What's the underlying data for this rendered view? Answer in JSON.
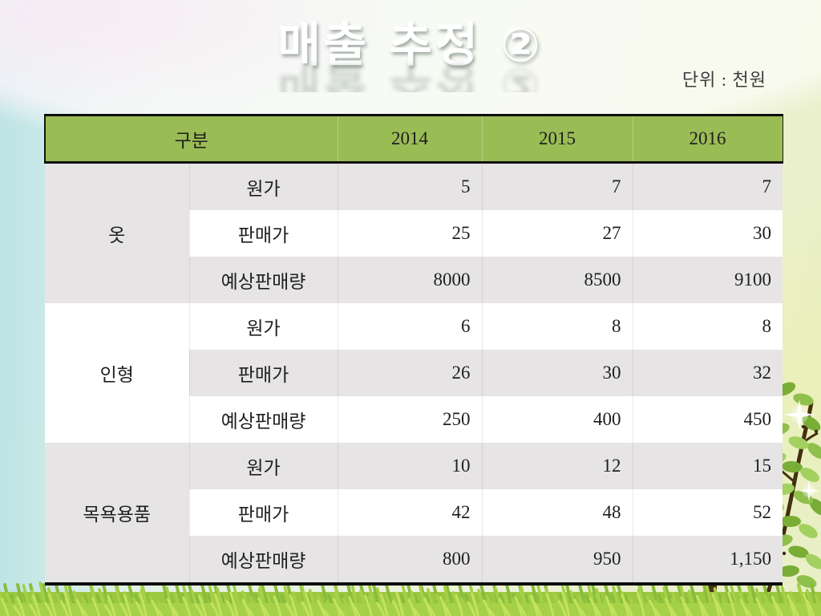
{
  "slide": {
    "title": "매출 추정 ②",
    "unit_label": "단위 : 천원"
  },
  "table": {
    "header": {
      "category": "구분",
      "years": [
        "2014",
        "2015",
        "2016"
      ]
    },
    "groups": [
      {
        "name": "옷",
        "rows": [
          {
            "metric": "원가",
            "values": [
              "5",
              "7",
              "7"
            ]
          },
          {
            "metric": "판매가",
            "values": [
              "25",
              "27",
              "30"
            ]
          },
          {
            "metric": "예상판매량",
            "values": [
              "8000",
              "8500",
              "9100"
            ]
          }
        ]
      },
      {
        "name": "인형",
        "rows": [
          {
            "metric": "원가",
            "values": [
              "6",
              "8",
              "8"
            ]
          },
          {
            "metric": "판매가",
            "values": [
              "26",
              "30",
              "32"
            ]
          },
          {
            "metric": "예상판매량",
            "values": [
              "250",
              "400",
              "450"
            ]
          }
        ]
      },
      {
        "name": "목욕용품",
        "rows": [
          {
            "metric": "원가",
            "values": [
              "10",
              "12",
              "15"
            ]
          },
          {
            "metric": "판매가",
            "values": [
              "42",
              "48",
              "52"
            ]
          },
          {
            "metric": "예상판매량",
            "values": [
              "800",
              "950",
              "1,150"
            ]
          }
        ]
      }
    ]
  },
  "colors": {
    "header_green": "#9abc55",
    "row_gray": "#e6e4e4",
    "row_white": "#ffffff",
    "table_border": "#0e0e0e",
    "grass_green": "#a4d146",
    "title_white": "#ffffff"
  }
}
